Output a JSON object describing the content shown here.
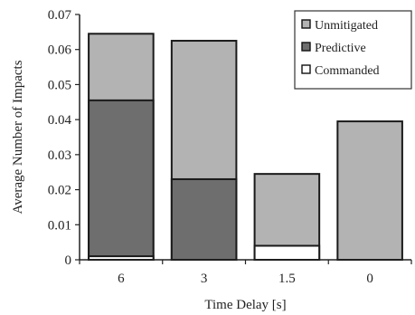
{
  "chart_data": {
    "type": "bar",
    "title": "",
    "xlabel": "Time Delay [s]",
    "ylabel": "Average Number of Impacts",
    "categories": [
      "6",
      "3",
      "1.5",
      "0"
    ],
    "ylim": [
      0,
      0.07
    ],
    "yticks": [
      "0",
      "0.01",
      "0.02",
      "0.03",
      "0.04",
      "0.05",
      "0.06",
      "0.07"
    ],
    "grid": false,
    "legend_position": "top-right",
    "layering": "overlapping",
    "series": [
      {
        "name": "Unmitigated",
        "values": [
          0.0645,
          0.0625,
          0.0245,
          0.0395
        ],
        "color": "#b3b3b3"
      },
      {
        "name": "Predictive",
        "values": [
          0.0455,
          0.023,
          null,
          null
        ],
        "color": "#6e6e6e"
      },
      {
        "name": "Commanded",
        "values": [
          0.001,
          null,
          0.004,
          null
        ],
        "color": "#ffffff"
      }
    ]
  }
}
